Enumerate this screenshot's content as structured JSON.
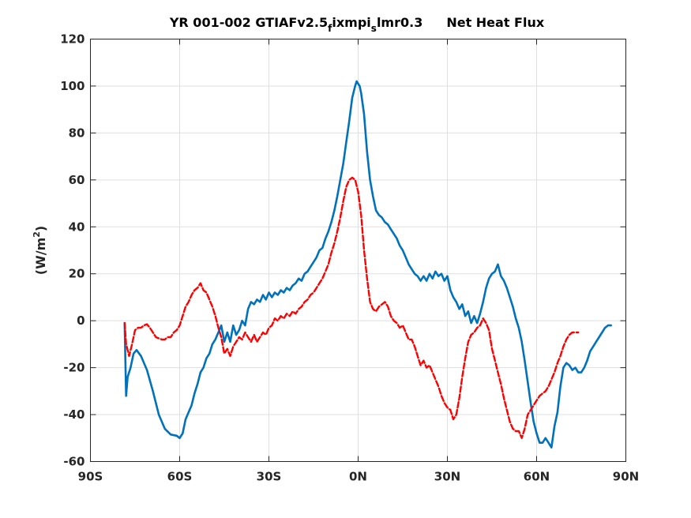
{
  "chart_data": {
    "type": "line",
    "title": {
      "prefix": "YR 001-002 GTIAFv2.5",
      "sub1": "f",
      "middle": "ixmpi",
      "sub2": "s",
      "suffix": "lmr0.3",
      "name": "Net Heat Flux"
    },
    "ylabel": {
      "main": "(W/m",
      "sup": "2",
      "close": ")"
    },
    "xlim": [
      -90,
      90
    ],
    "ylim": [
      -60,
      120
    ],
    "grid": true,
    "x_ticks": [
      -90,
      -60,
      -30,
      0,
      30,
      60,
      90
    ],
    "x_tick_labels": [
      "90S",
      "60S",
      "30S",
      "0N",
      "30N",
      "60N",
      "90N"
    ],
    "y_ticks": [
      -60,
      -40,
      -20,
      0,
      20,
      40,
      60,
      80,
      100,
      120
    ],
    "y_tick_labels": [
      "-60",
      "-40",
      "-20",
      "0",
      "20",
      "40",
      "60",
      "80",
      "100",
      "120"
    ],
    "series": [
      {
        "color": "#0072BD",
        "style": "solid",
        "points": [
          [
            -78.5,
            -1
          ],
          [
            -78,
            -32
          ],
          [
            -77.5,
            -24
          ],
          [
            -76.5,
            -20
          ],
          [
            -75.5,
            -14
          ],
          [
            -74.5,
            -12.5
          ],
          [
            -73,
            -15
          ],
          [
            -71,
            -21
          ],
          [
            -69,
            -30
          ],
          [
            -67,
            -40
          ],
          [
            -65,
            -46
          ],
          [
            -63,
            -48.5
          ],
          [
            -61,
            -49
          ],
          [
            -60,
            -50
          ],
          [
            -59,
            -48
          ],
          [
            -58,
            -42
          ],
          [
            -56,
            -36
          ],
          [
            -55,
            -31
          ],
          [
            -54,
            -27
          ],
          [
            -53,
            -22
          ],
          [
            -52,
            -20
          ],
          [
            -51,
            -16
          ],
          [
            -50,
            -14
          ],
          [
            -49,
            -10
          ],
          [
            -48,
            -8
          ],
          [
            -47,
            -5
          ],
          [
            -46,
            -2
          ],
          [
            -45,
            -9
          ],
          [
            -44,
            -5
          ],
          [
            -43,
            -9
          ],
          [
            -42,
            -2
          ],
          [
            -41,
            -6
          ],
          [
            -40,
            -4
          ],
          [
            -39,
            0
          ],
          [
            -38,
            -2
          ],
          [
            -37,
            5
          ],
          [
            -36,
            8
          ],
          [
            -35,
            7
          ],
          [
            -34,
            9
          ],
          [
            -33,
            8
          ],
          [
            -32,
            11
          ],
          [
            -31,
            9
          ],
          [
            -30,
            12
          ],
          [
            -29,
            10
          ],
          [
            -28,
            12
          ],
          [
            -27,
            11
          ],
          [
            -26,
            13
          ],
          [
            -25,
            12
          ],
          [
            -24,
            14
          ],
          [
            -23,
            13
          ],
          [
            -22,
            15
          ],
          [
            -21,
            16
          ],
          [
            -20,
            18
          ],
          [
            -19,
            17
          ],
          [
            -18,
            20
          ],
          [
            -17,
            21
          ],
          [
            -16,
            23
          ],
          [
            -15,
            25
          ],
          [
            -14,
            27
          ],
          [
            -13,
            30
          ],
          [
            -12,
            31
          ],
          [
            -11,
            35
          ],
          [
            -10,
            38
          ],
          [
            -9,
            42
          ],
          [
            -8,
            47
          ],
          [
            -7,
            53
          ],
          [
            -6,
            60
          ],
          [
            -5,
            67
          ],
          [
            -4,
            76
          ],
          [
            -3,
            85
          ],
          [
            -2,
            95
          ],
          [
            -1,
            100
          ],
          [
            -0.5,
            102
          ],
          [
            0.5,
            100
          ],
          [
            1,
            97
          ],
          [
            2,
            88
          ],
          [
            3,
            72
          ],
          [
            4,
            60
          ],
          [
            5,
            53
          ],
          [
            6,
            47
          ],
          [
            7,
            45
          ],
          [
            8,
            44
          ],
          [
            9,
            42
          ],
          [
            10,
            41
          ],
          [
            11,
            39
          ],
          [
            12,
            37
          ],
          [
            13,
            35
          ],
          [
            14,
            32
          ],
          [
            15,
            30
          ],
          [
            16,
            27
          ],
          [
            17,
            24
          ],
          [
            18,
            22
          ],
          [
            19,
            20
          ],
          [
            20,
            19
          ],
          [
            21,
            17
          ],
          [
            22,
            19
          ],
          [
            23,
            17
          ],
          [
            24,
            20
          ],
          [
            25,
            18
          ],
          [
            26,
            21
          ],
          [
            27,
            19
          ],
          [
            28,
            20
          ],
          [
            29,
            17
          ],
          [
            30,
            19
          ],
          [
            31,
            13
          ],
          [
            32,
            10
          ],
          [
            33,
            8
          ],
          [
            34,
            5
          ],
          [
            35,
            7
          ],
          [
            36,
            2
          ],
          [
            37,
            4
          ],
          [
            38,
            -1
          ],
          [
            39,
            2
          ],
          [
            40,
            -1
          ],
          [
            41,
            3
          ],
          [
            42,
            8
          ],
          [
            43,
            14
          ],
          [
            44,
            18
          ],
          [
            45,
            20
          ],
          [
            46,
            21
          ],
          [
            47,
            24
          ],
          [
            48,
            19
          ],
          [
            49,
            17
          ],
          [
            50,
            14
          ],
          [
            51,
            10
          ],
          [
            52,
            6
          ],
          [
            53,
            1
          ],
          [
            54,
            -3
          ],
          [
            55,
            -9
          ],
          [
            56,
            -17
          ],
          [
            57,
            -26
          ],
          [
            58,
            -35
          ],
          [
            59,
            -43
          ],
          [
            60,
            -48
          ],
          [
            61,
            -52
          ],
          [
            62,
            -52
          ],
          [
            63,
            -50
          ],
          [
            64,
            -52
          ],
          [
            65,
            -54
          ],
          [
            66,
            -45
          ],
          [
            67,
            -39
          ],
          [
            68,
            -28
          ],
          [
            69,
            -20
          ],
          [
            70,
            -18
          ],
          [
            71,
            -19
          ],
          [
            72,
            -21
          ],
          [
            73,
            -20
          ],
          [
            74,
            -22
          ],
          [
            75,
            -22
          ],
          [
            76,
            -20
          ],
          [
            77,
            -17
          ],
          [
            78,
            -13
          ],
          [
            79,
            -11
          ],
          [
            80,
            -9
          ],
          [
            81,
            -7
          ],
          [
            82,
            -5
          ],
          [
            83,
            -3
          ],
          [
            84,
            -2
          ],
          [
            85,
            -2
          ]
        ]
      },
      {
        "color": "#FF0000",
        "style": "dashed",
        "points": [
          [
            -78.5,
            -1
          ],
          [
            -78,
            -10
          ],
          [
            -77,
            -15
          ],
          [
            -76,
            -10
          ],
          [
            -75,
            -4
          ],
          [
            -74,
            -3
          ],
          [
            -73,
            -3
          ],
          [
            -72,
            -2
          ],
          [
            -71,
            -1.5
          ],
          [
            -70,
            -3
          ],
          [
            -69,
            -5
          ],
          [
            -68,
            -7
          ],
          [
            -67,
            -7.5
          ],
          [
            -66,
            -8
          ],
          [
            -65,
            -8
          ],
          [
            -64,
            -7
          ],
          [
            -63,
            -7
          ],
          [
            -62,
            -5
          ],
          [
            -61,
            -4
          ],
          [
            -60,
            -2
          ],
          [
            -59,
            2
          ],
          [
            -58,
            6
          ],
          [
            -57,
            8
          ],
          [
            -56,
            11
          ],
          [
            -55,
            13
          ],
          [
            -54,
            14
          ],
          [
            -53,
            16
          ],
          [
            -52,
            13
          ],
          [
            -51,
            12
          ],
          [
            -50,
            9
          ],
          [
            -49,
            6
          ],
          [
            -48,
            2
          ],
          [
            -47,
            -3
          ],
          [
            -46,
            -7
          ],
          [
            -45,
            -14
          ],
          [
            -44,
            -12
          ],
          [
            -43,
            -15
          ],
          [
            -42,
            -11
          ],
          [
            -41,
            -9
          ],
          [
            -40,
            -7
          ],
          [
            -39,
            -8
          ],
          [
            -38,
            -5
          ],
          [
            -37,
            -7
          ],
          [
            -36,
            -9
          ],
          [
            -35,
            -6
          ],
          [
            -34,
            -9
          ],
          [
            -33,
            -7
          ],
          [
            -32,
            -5
          ],
          [
            -31,
            -6
          ],
          [
            -30,
            -3
          ],
          [
            -29,
            -2
          ],
          [
            -28,
            1
          ],
          [
            -27,
            0
          ],
          [
            -26,
            2
          ],
          [
            -25,
            1
          ],
          [
            -24,
            3
          ],
          [
            -23,
            2
          ],
          [
            -22,
            4
          ],
          [
            -21,
            3
          ],
          [
            -20,
            5
          ],
          [
            -19,
            6
          ],
          [
            -18,
            8
          ],
          [
            -17,
            9
          ],
          [
            -16,
            11
          ],
          [
            -15,
            12
          ],
          [
            -14,
            14
          ],
          [
            -13,
            16
          ],
          [
            -12,
            18
          ],
          [
            -11,
            21
          ],
          [
            -10,
            24
          ],
          [
            -9,
            29
          ],
          [
            -8,
            33
          ],
          [
            -7,
            38
          ],
          [
            -6,
            44
          ],
          [
            -5,
            51
          ],
          [
            -4,
            57
          ],
          [
            -3,
            60
          ],
          [
            -2,
            61
          ],
          [
            -1,
            60
          ],
          [
            0,
            55
          ],
          [
            1,
            45
          ],
          [
            2,
            30
          ],
          [
            3,
            18
          ],
          [
            4,
            8
          ],
          [
            5,
            5
          ],
          [
            6,
            4
          ],
          [
            7,
            6
          ],
          [
            8,
            7
          ],
          [
            9,
            8
          ],
          [
            10,
            6
          ],
          [
            11,
            2
          ],
          [
            12,
            0
          ],
          [
            13,
            -1
          ],
          [
            14,
            -3
          ],
          [
            15,
            -2
          ],
          [
            16,
            -5
          ],
          [
            17,
            -8
          ],
          [
            18,
            -8
          ],
          [
            19,
            -11
          ],
          [
            20,
            -15
          ],
          [
            21,
            -19
          ],
          [
            22,
            -17
          ],
          [
            23,
            -20
          ],
          [
            24,
            -19
          ],
          [
            25,
            -22
          ],
          [
            26,
            -25
          ],
          [
            27,
            -28
          ],
          [
            28,
            -32
          ],
          [
            29,
            -35
          ],
          [
            30,
            -37
          ],
          [
            31,
            -38
          ],
          [
            32,
            -42
          ],
          [
            33,
            -40
          ],
          [
            34,
            -33
          ],
          [
            35,
            -24
          ],
          [
            36,
            -16
          ],
          [
            37,
            -9
          ],
          [
            38,
            -6
          ],
          [
            39,
            -5
          ],
          [
            40,
            -3
          ],
          [
            41,
            -2
          ],
          [
            42,
            1
          ],
          [
            43,
            -1
          ],
          [
            44,
            -4
          ],
          [
            45,
            -12
          ],
          [
            46,
            -17
          ],
          [
            47,
            -22
          ],
          [
            48,
            -27
          ],
          [
            49,
            -33
          ],
          [
            50,
            -38
          ],
          [
            51,
            -43
          ],
          [
            52,
            -46
          ],
          [
            53,
            -47
          ],
          [
            54,
            -47
          ],
          [
            55,
            -50
          ],
          [
            56,
            -46
          ],
          [
            57,
            -40
          ],
          [
            58,
            -38
          ],
          [
            59,
            -36
          ],
          [
            60,
            -34
          ],
          [
            61,
            -32
          ],
          [
            62,
            -31
          ],
          [
            63,
            -30
          ],
          [
            64,
            -28
          ],
          [
            65,
            -25
          ],
          [
            66,
            -22
          ],
          [
            67,
            -18
          ],
          [
            68,
            -15
          ],
          [
            69,
            -11
          ],
          [
            70,
            -8
          ],
          [
            71,
            -6
          ],
          [
            72,
            -5
          ],
          [
            73,
            -5
          ],
          [
            74,
            -5
          ]
        ]
      }
    ]
  }
}
